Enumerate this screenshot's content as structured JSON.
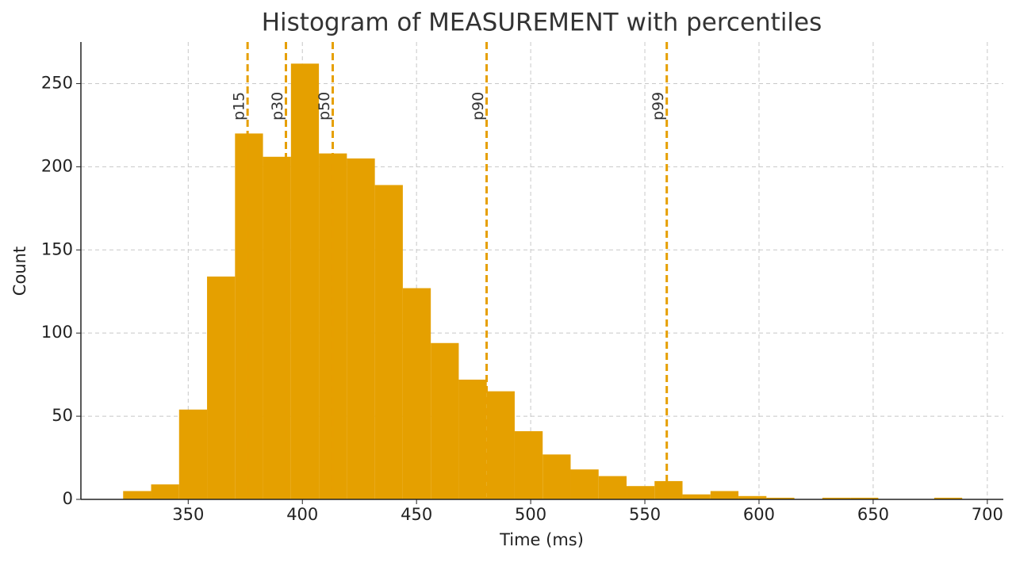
{
  "chart_data": {
    "type": "histogram",
    "title": "Histogram of MEASUREMENT with percentiles",
    "xlabel": "Time (ms)",
    "ylabel": "Count",
    "bins": [
      321.5,
      333.75,
      346,
      358.25,
      370.5,
      382.75,
      395,
      407.25,
      419.5,
      431.75,
      444,
      456.25,
      468.5,
      480.75,
      493,
      505.25,
      517.5,
      529.75,
      542,
      554.25,
      566.5,
      578.75,
      591,
      603.25,
      615.5,
      627.75,
      640,
      652.25,
      664.5,
      676.75,
      689
    ],
    "values": [
      5,
      9,
      54,
      134,
      220,
      206,
      262,
      208,
      205,
      189,
      127,
      94,
      72,
      65,
      41,
      27,
      18,
      14,
      8,
      11,
      3,
      5,
      2,
      1,
      0,
      1,
      1,
      0,
      0,
      1
    ],
    "color": "#e5a000",
    "percentiles": [
      {
        "label": "p15",
        "value": 376
      },
      {
        "label": "p30",
        "value": 392.8
      },
      {
        "label": "p50",
        "value": 413.3
      },
      {
        "label": "p90",
        "value": 480.7
      },
      {
        "label": "p99",
        "value": 559.6
      }
    ],
    "percentile_color": "#e69f00",
    "xlim": [
      303,
      707
    ],
    "ylim": [
      0,
      275
    ],
    "xticks": [
      350,
      400,
      450,
      500,
      550,
      600,
      650,
      700
    ],
    "yticks": [
      0,
      50,
      100,
      150,
      200,
      250
    ],
    "grid": true
  }
}
